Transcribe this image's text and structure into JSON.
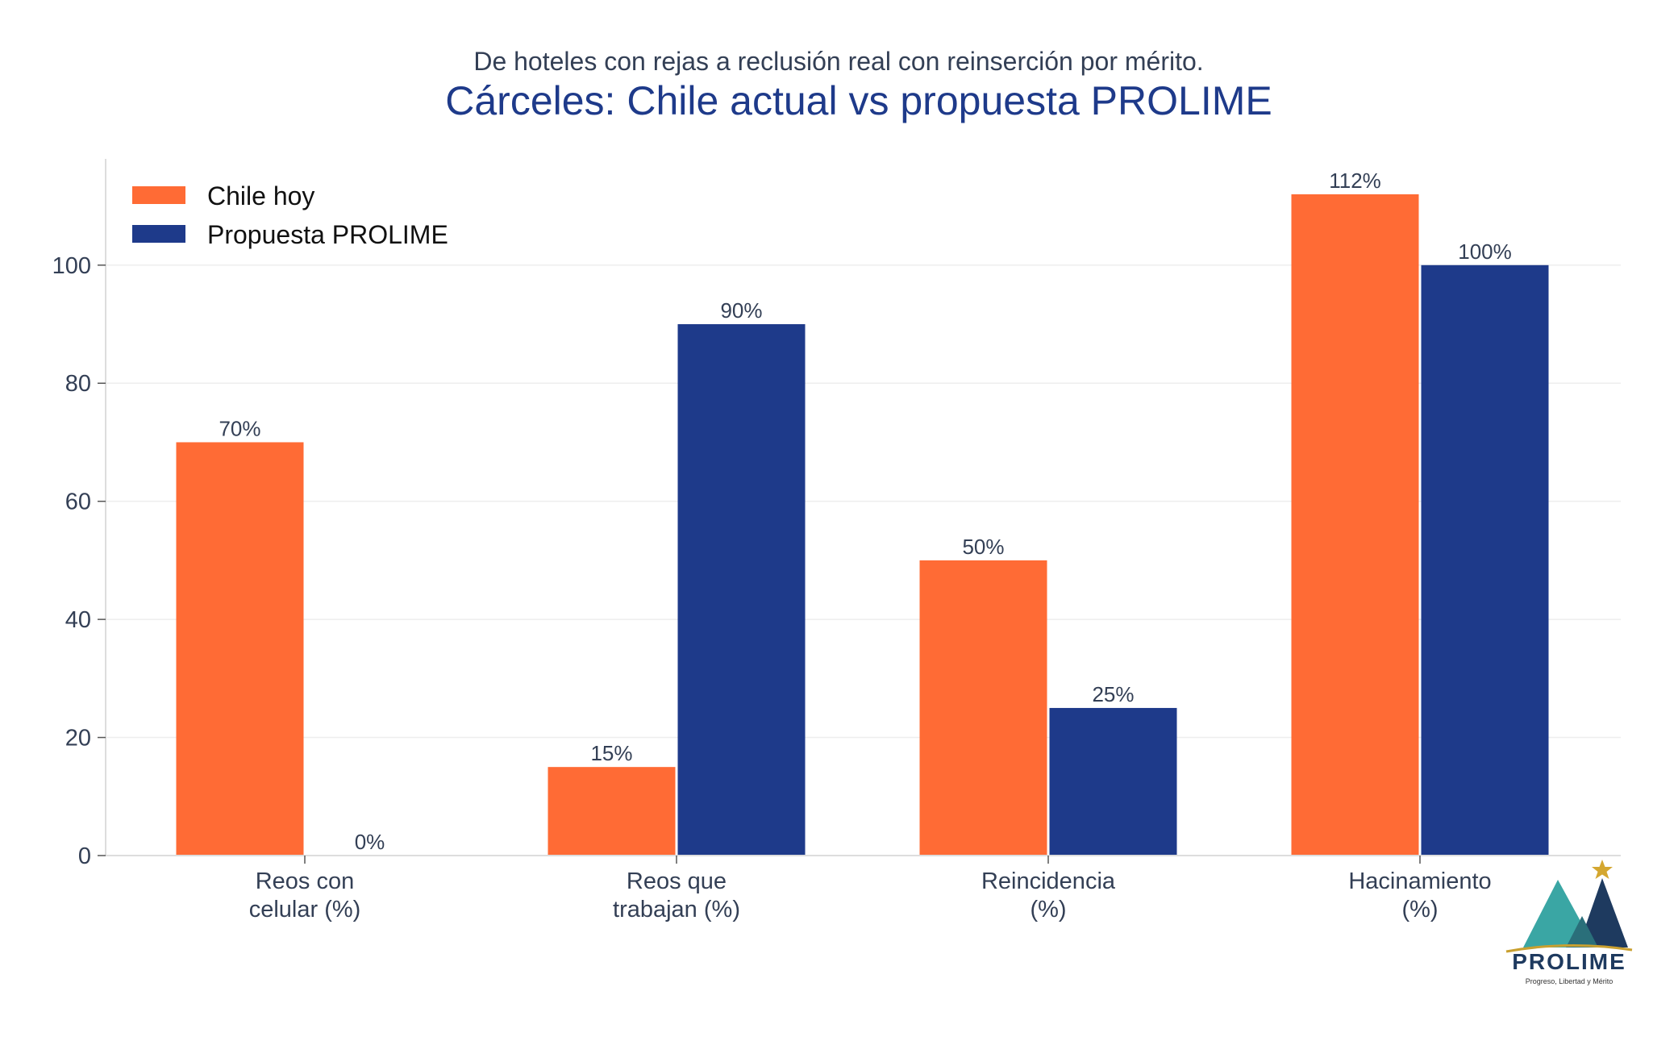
{
  "chart_data": {
    "type": "bar",
    "subtitle": "De hoteles con rejas a reclusión real con reinserción por mérito.",
    "title": "Cárceles: Chile actual vs propuesta PROLIME",
    "categories": [
      [
        "Reos con",
        "celular (%)"
      ],
      [
        "Reos que",
        "trabajan (%)"
      ],
      [
        "Reincidencia",
        "(%)"
      ],
      [
        "Hacinamiento",
        "(%)"
      ]
    ],
    "series": [
      {
        "name": "Chile hoy",
        "color": "#ff6b35",
        "values": [
          70,
          15,
          50,
          112
        ],
        "labels": [
          "70%",
          "15%",
          "50%",
          "112%"
        ]
      },
      {
        "name": "Propuesta PROLIME",
        "color": "#1e3a8a",
        "values": [
          0,
          90,
          25,
          100
        ],
        "labels": [
          "0%",
          "90%",
          "25%",
          "100%"
        ]
      }
    ],
    "yticks": [
      0,
      20,
      40,
      60,
      80,
      100
    ],
    "ylim": [
      0,
      118
    ],
    "grid": true,
    "legend_position": "top-left"
  },
  "logo": {
    "name": "PROLIME",
    "tagline": "Progreso, Libertad y Mérito"
  }
}
